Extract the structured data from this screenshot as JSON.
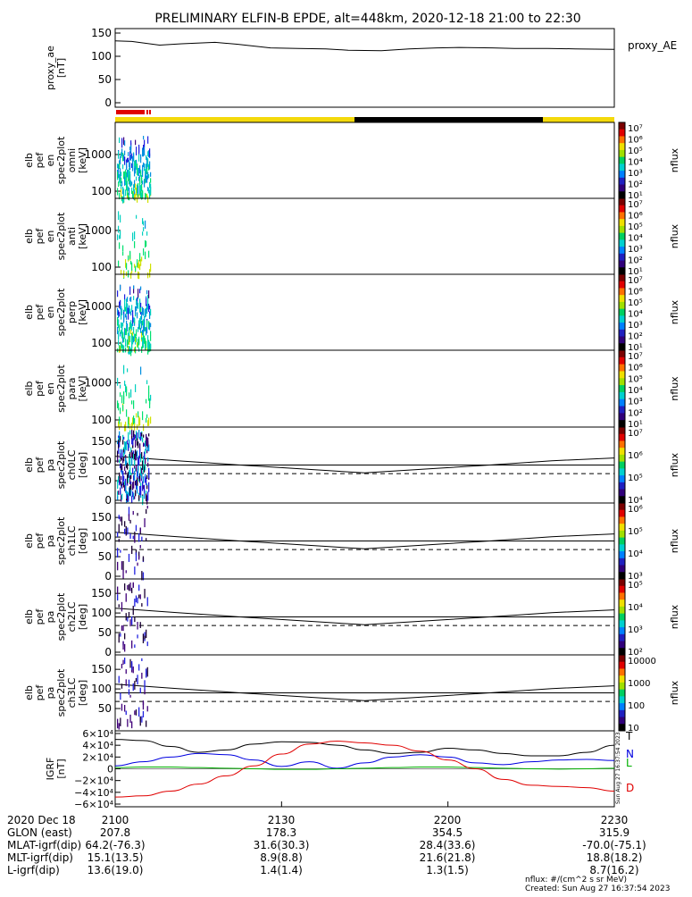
{
  "title": "PRELIMINARY ELFIN-B EPDE, alt=448km, 2020-12-18 21:00 to 22:30",
  "colors": {
    "sunlit": "#f4d90c",
    "shadow": "#000000",
    "science_zone": "#e00000",
    "br": "#e00000",
    "bz": "#0000e0",
    "bphi": "#00b000"
  },
  "chart_data": [
    {
      "type": "line",
      "id": "proxy_ae",
      "ylabel": [
        "proxy_ae",
        "[nT]"
      ],
      "ylim": [
        0,
        150
      ],
      "yticks": [
        "150",
        "100",
        "50",
        "0"
      ],
      "legend": "proxy_AE",
      "x": [
        0,
        3,
        8,
        12,
        18,
        22,
        28,
        33,
        38,
        42,
        48,
        53,
        58,
        62,
        68,
        72,
        78,
        83,
        90
      ],
      "values": [
        133,
        132,
        124,
        127,
        130,
        126,
        118,
        117,
        116,
        113,
        112,
        116,
        118,
        119,
        118,
        117,
        117,
        116,
        115
      ]
    },
    {
      "type": "heatmap",
      "id": "en_omni",
      "ylabel": [
        "elb",
        "pef",
        "en",
        "spec2plot",
        "omni",
        "[keV]"
      ],
      "yticks": [
        "1000",
        "100"
      ],
      "colorbar": {
        "label": "nflux",
        "ticks": [
          "10⁷",
          "10⁶",
          "10⁵",
          "10⁴",
          "10³",
          "10²",
          "10¹"
        ]
      }
    },
    {
      "type": "heatmap",
      "id": "en_anti",
      "ylabel": [
        "elb",
        "pef",
        "en",
        "spec2plot",
        "anti",
        "[keV]"
      ],
      "yticks": [
        "1000",
        "100"
      ],
      "colorbar": {
        "label": "nflux",
        "ticks": [
          "10⁷",
          "10⁶",
          "10⁵",
          "10⁴",
          "10³",
          "10²",
          "10¹"
        ]
      }
    },
    {
      "type": "heatmap",
      "id": "en_perp",
      "ylabel": [
        "elb",
        "pef",
        "en",
        "spec2plot",
        "perp",
        "[keV]"
      ],
      "yticks": [
        "1000",
        "100"
      ],
      "colorbar": {
        "label": "nflux",
        "ticks": [
          "10⁷",
          "10⁶",
          "10⁵",
          "10⁴",
          "10³",
          "10²",
          "10¹"
        ]
      }
    },
    {
      "type": "heatmap",
      "id": "en_para",
      "ylabel": [
        "elb",
        "pef",
        "en",
        "spec2plot",
        "para",
        "[keV]"
      ],
      "yticks": [
        "1000",
        "100"
      ],
      "colorbar": {
        "label": "nflux",
        "ticks": [
          "10⁷",
          "10⁶",
          "10⁵",
          "10⁴",
          "10³",
          "10²",
          "10¹"
        ]
      }
    },
    {
      "type": "heatmap",
      "id": "pa_ch0",
      "ylabel": [
        "elb",
        "pef",
        "pa",
        "spec2plot",
        "ch0LC",
        "[deg]"
      ],
      "ylim": [
        0,
        180
      ],
      "yticks": [
        "150",
        "100",
        "50",
        "0"
      ],
      "colorbar": {
        "label": "nflux",
        "ticks": [
          "10⁷",
          "10⁶",
          "10⁵",
          "10⁴"
        ]
      },
      "loss_cone": [
        112,
        101,
        90,
        80,
        70,
        80,
        90,
        101,
        108
      ],
      "anti_loss_cone": 68,
      "ref_line": 90
    },
    {
      "type": "heatmap",
      "id": "pa_ch1",
      "ylabel": [
        "elb",
        "pef",
        "pa",
        "spec2plot",
        "ch1LC",
        "[deg]"
      ],
      "ylim": [
        0,
        180
      ],
      "yticks": [
        "150",
        "100",
        "50",
        "0"
      ],
      "colorbar": {
        "label": "nflux",
        "ticks": [
          "10⁶",
          "10⁵",
          "10⁴",
          "10³"
        ]
      },
      "loss_cone": [
        112,
        101,
        90,
        80,
        70,
        80,
        90,
        101,
        108
      ],
      "anti_loss_cone": 68,
      "ref_line": 90
    },
    {
      "type": "heatmap",
      "id": "pa_ch2",
      "ylabel": [
        "elb",
        "pef",
        "pa",
        "spec2plot",
        "ch2LC",
        "[deg]"
      ],
      "ylim": [
        0,
        180
      ],
      "yticks": [
        "150",
        "100",
        "50",
        "0"
      ],
      "colorbar": {
        "label": "nflux",
        "ticks": [
          "10⁵",
          "10⁴",
          "10³",
          "10²"
        ]
      },
      "loss_cone": [
        112,
        101,
        90,
        80,
        70,
        80,
        90,
        101,
        108
      ],
      "anti_loss_cone": 68,
      "ref_line": 90
    },
    {
      "type": "heatmap",
      "id": "pa_ch3",
      "ylabel": [
        "elb",
        "pef",
        "pa",
        "spec2plot",
        "ch3LC",
        "[deg]"
      ],
      "ylim": [
        0,
        180
      ],
      "yticks": [
        "150",
        "100",
        "50"
      ],
      "colorbar": {
        "label": "nflux",
        "ticks": [
          "10000",
          "1000",
          "100",
          "10"
        ]
      },
      "loss_cone": [
        112,
        101,
        90,
        80,
        70,
        80,
        90,
        101,
        108
      ],
      "anti_loss_cone": 68,
      "ref_line": 90
    },
    {
      "type": "line",
      "id": "igrf",
      "ylabel": [
        "IGRF",
        "[nT]"
      ],
      "ylim": [
        -60000,
        60000
      ],
      "yticks": [
        "6×10⁴",
        "4×10⁴",
        "2×10⁴",
        "0",
        "−2×10⁴",
        "−4×10⁴",
        "−6×10⁴"
      ],
      "x": [
        0,
        5,
        10,
        15,
        20,
        25,
        30,
        35,
        40,
        45,
        50,
        55,
        60,
        65,
        70,
        75,
        80,
        85,
        90
      ],
      "series": [
        {
          "name": "T",
          "color": "#000000",
          "values": [
            50000,
            48000,
            38000,
            28000,
            32000,
            42000,
            46000,
            45000,
            40000,
            32000,
            26000,
            28000,
            35000,
            32000,
            26000,
            22000,
            22000,
            28000,
            40000
          ]
        },
        {
          "name": "N",
          "color": "#0000e0",
          "values": [
            5000,
            12000,
            20000,
            26000,
            24000,
            15000,
            4000,
            12000,
            1000,
            10000,
            20000,
            24000,
            20000,
            10000,
            7000,
            12000,
            15000,
            16000,
            14000
          ]
        },
        {
          "name": "L",
          "color": "#00b000",
          "values": [
            2000,
            3000,
            3000,
            2000,
            1000,
            0,
            -1000,
            -1000,
            0,
            1000,
            2000,
            3000,
            3000,
            2000,
            1000,
            0,
            -500,
            0,
            1000
          ]
        },
        {
          "name": "D",
          "color": "#e00000",
          "values": [
            -48000,
            -46000,
            -38000,
            -26000,
            -12000,
            5000,
            25000,
            42000,
            47000,
            44000,
            40000,
            30000,
            15000,
            0,
            -18000,
            -28000,
            -30000,
            -32000,
            -38000
          ]
        }
      ]
    }
  ],
  "orbit": {
    "xticks": [
      "2100",
      "2130",
      "2200",
      "2230"
    ],
    "rows": [
      {
        "label": "2020 Dec 18",
        "values": [
          "2100",
          "2130",
          "2200",
          "2230"
        ]
      },
      {
        "label": "GLON (east)",
        "values": [
          "207.8",
          "178.3",
          "354.5",
          "315.9"
        ]
      },
      {
        "label": "MLAT-igrf(dip)",
        "values": [
          "64.2(-76.3)",
          "31.6(30.3)",
          "28.4(33.6)",
          "-70.0(-75.1)"
        ]
      },
      {
        "label": "MLT-igrf(dip)",
        "values": [
          "15.1(13.5)",
          "8.9(8.8)",
          "21.6(21.8)",
          "18.8(18.2)"
        ]
      },
      {
        "label": "L-igrf(dip)",
        "values": [
          "13.6(19.0)",
          "1.4(1.4)",
          "1.3(1.5)",
          "8.7(16.2)"
        ]
      }
    ]
  },
  "footer": {
    "units": "nflux: #/(cm^2 s sr MeV)",
    "created": "Created: Sun Aug 27 16:37:54 2023",
    "stamp": "Sun Aug 27 16:37:54 2023"
  }
}
